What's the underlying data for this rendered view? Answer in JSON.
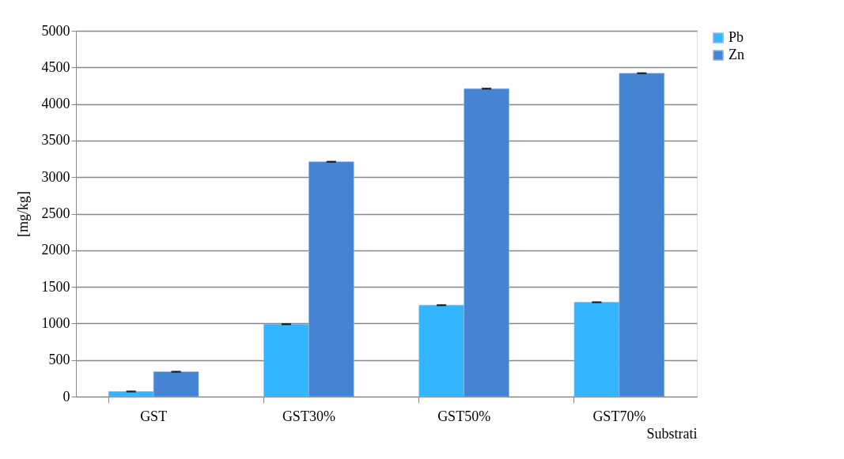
{
  "chart_data": {
    "type": "bar",
    "xlabel": "Substrati",
    "ylabel": "[mg/kg]",
    "categories": [
      "GST",
      "GST30%",
      "GST50%",
      "GST70%"
    ],
    "series": [
      {
        "name": "Pb",
        "color": "#33b5ff",
        "values": [
          70,
          990,
          1250,
          1290
        ],
        "errors": [
          5,
          5,
          5,
          5
        ]
      },
      {
        "name": "Zn",
        "color": "#4584d3",
        "values": [
          340,
          3210,
          4210,
          4420
        ],
        "errors": [
          5,
          5,
          5,
          5
        ]
      }
    ],
    "ylim": [
      0,
      5000
    ],
    "yticks": [
      0,
      500,
      1000,
      1500,
      2000,
      2500,
      3000,
      3500,
      4000,
      4500,
      5000
    ],
    "grid": "y",
    "legend": "right"
  }
}
